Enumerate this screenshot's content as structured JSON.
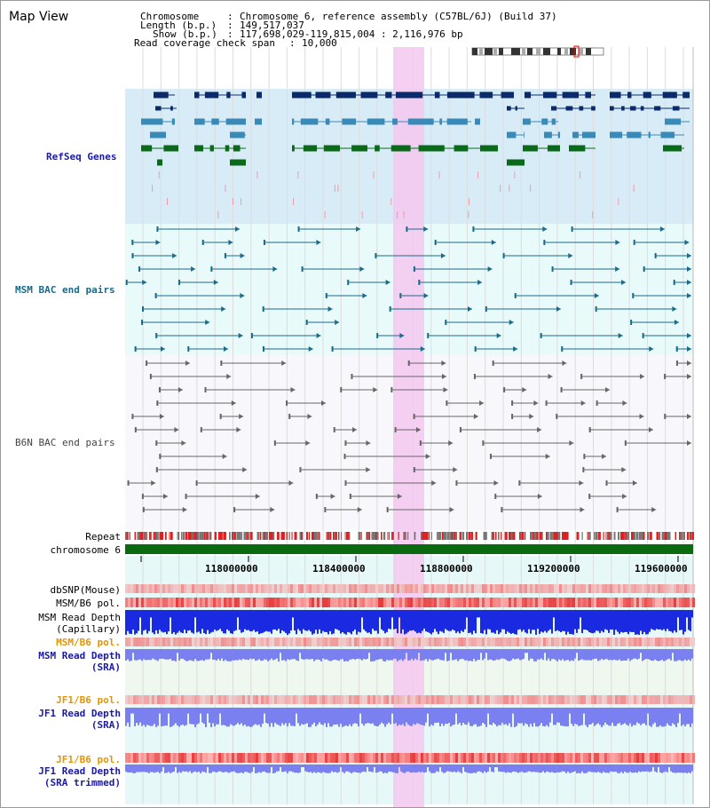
{
  "page": {
    "title": "Map View"
  },
  "header": {
    "chromosome_label": "Chromosome",
    "chromosome_value": "Chromosome 6, reference assembly (C57BL/6J) (Build 37)",
    "length_label": "Length (b.p.)",
    "length_value": "149,517,037",
    "show_label": "Show (b.p.)",
    "show_value": "117,698,029-119,815,004 : 2,116,976 bp",
    "coverage_label": "Read coverage check span",
    "coverage_value": "10,000",
    "sep": ":"
  },
  "tracks": {
    "refseq": {
      "label": "RefSeq Genes",
      "color": "#1a1aa6"
    },
    "msm_bac": {
      "label": "MSM BAC end pairs",
      "color": "#1a6a8a"
    },
    "b6n_bac": {
      "label": "B6N BAC end pairs",
      "color": "#555555"
    },
    "repeat": {
      "label": "Repeat"
    },
    "chromosome": {
      "label": "chromosome 6"
    },
    "dbsnp": {
      "label": "dbSNP(Mouse)"
    },
    "msm_b6_pol": {
      "label": "MSM/B6 pol."
    },
    "msm_read_depth_cap": {
      "label1": "MSM Read Depth",
      "label2": "(Capillary)"
    },
    "msm_b6_pol2": {
      "label": "MSM/B6 pol.",
      "color": "#e69500"
    },
    "msm_read_depth_sra": {
      "label1": "MSM Read Depth",
      "label2": "(SRA)",
      "color": "#1a1aa6"
    },
    "jf1_b6_pol": {
      "label": "JF1/B6 pol.",
      "color": "#e69500"
    },
    "jf1_read_depth_sra": {
      "label1": "JF1 Read Depth",
      "label2": "(SRA)",
      "color": "#1a1aa6"
    },
    "jf1_b6_pol2": {
      "label": "JF1/B6 pol.",
      "color": "#e69500"
    },
    "jf1_read_depth_trim": {
      "label1": "JF1 Read Depth",
      "label2": "(SRA trimmed)",
      "color": "#1a1aa6"
    }
  },
  "axis": {
    "ticks": [
      "118000000",
      "118400000",
      "118800000",
      "119200000",
      "119600000"
    ]
  },
  "colors": {
    "highlight": "#f5c8f0",
    "refseq_bg": "#d8ecf8",
    "msm_bg": "#e8fafa",
    "b6n_bg": "#f8f8fc",
    "depth_bg": "#e6f8f8",
    "dark_blue": "#0a2a6a",
    "mid_blue": "#3a8ab8",
    "dark_green": "#0a6a1a",
    "repeat_red": "#e02020",
    "chrom_green": "#0a6a10"
  }
}
